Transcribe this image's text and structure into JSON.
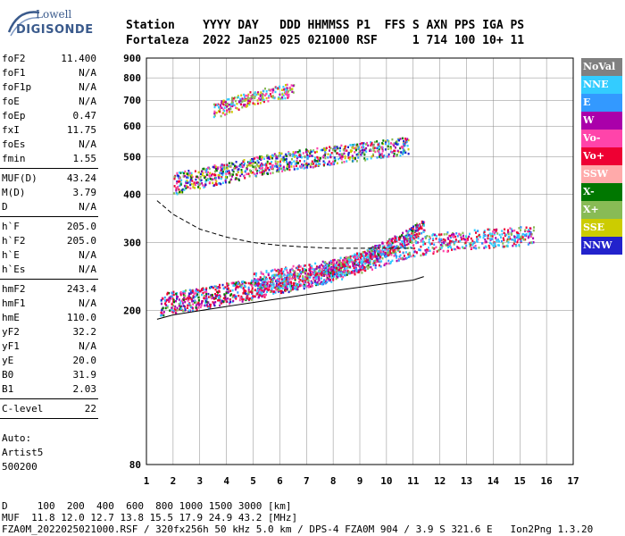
{
  "logo": {
    "line1": "Lowell",
    "line2": "DIGISONDE"
  },
  "header": {
    "line1": "Station    YYYY DAY   DDD HHMMSS P1  FFS S AXN PPS IGA PS",
    "line2": "Fortaleza  2022 Jan25 025 021000 RSF     1 714 100 10+ 11"
  },
  "params": [
    {
      "name": "foF2",
      "value": "11.400"
    },
    {
      "name": "foF1",
      "value": "N/A"
    },
    {
      "name": "foF1p",
      "value": "N/A"
    },
    {
      "name": "foE",
      "value": "N/A"
    },
    {
      "name": "foEp",
      "value": "0.47"
    },
    {
      "name": "fxI",
      "value": "11.75"
    },
    {
      "name": "foEs",
      "value": "N/A"
    },
    {
      "name": "fmin",
      "value": "1.55"
    },
    {
      "name": "MUF(D)",
      "value": "43.24"
    },
    {
      "name": "M(D)",
      "value": "3.79"
    },
    {
      "name": "D",
      "value": "N/A"
    },
    {
      "name": "h`F",
      "value": "205.0"
    },
    {
      "name": "h`F2",
      "value": "205.0"
    },
    {
      "name": "h`E",
      "value": "N/A"
    },
    {
      "name": "h`Es",
      "value": "N/A"
    },
    {
      "name": "hmF2",
      "value": "243.4"
    },
    {
      "name": "hmF1",
      "value": "N/A"
    },
    {
      "name": "hmE",
      "value": "110.0"
    },
    {
      "name": "yF2",
      "value": "32.2"
    },
    {
      "name": "yF1",
      "value": "N/A"
    },
    {
      "name": "yE",
      "value": "20.0"
    },
    {
      "name": "B0",
      "value": "31.9"
    },
    {
      "name": "B1",
      "value": "2.03"
    },
    {
      "name": "C-level",
      "value": "22"
    }
  ],
  "auto": {
    "line1": "Auto:",
    "line2": "Artist5",
    "line3": "500200"
  },
  "legend": [
    {
      "label": "NoVal",
      "color": "#808080"
    },
    {
      "label": "NNE",
      "color": "#33ccff"
    },
    {
      "label": "E",
      "color": "#3399ff"
    },
    {
      "label": "W",
      "color": "#aa00aa"
    },
    {
      "label": "Vo-",
      "color": "#ff44aa"
    },
    {
      "label": "Vo+",
      "color": "#ee0033"
    },
    {
      "label": "SSW",
      "color": "#ffaaaa"
    },
    {
      "label": "X-",
      "color": "#007700"
    },
    {
      "label": "X+",
      "color": "#88bb55"
    },
    {
      "label": "SSE",
      "color": "#cccc00"
    },
    {
      "label": "NNW",
      "color": "#2222cc"
    }
  ],
  "bottom": {
    "line1": "D     100  200  400  600  800 1000 1500 3000 [km]",
    "line2": "MUF  11.8 12.0 12.7 13.8 15.5 17.9 24.9 43.2 [MHz]",
    "line3": "FZA0M_2022025021000.RSF / 320fx256h 50 kHz 5.0 km / DPS-4 FZA0M 904 / 3.9 S 321.6 E   Ion2Png 1.3.20"
  },
  "chart_data": {
    "type": "scatter",
    "title": "",
    "xlabel": "",
    "ylabel": "",
    "xlim": [
      1,
      17
    ],
    "ylim": [
      80,
      900
    ],
    "y_scale": "log",
    "x_ticks": [
      "1",
      "2",
      "3",
      "4",
      "5",
      "6",
      "7",
      "8",
      "9",
      "10",
      "11",
      "12",
      "13",
      "14",
      "15",
      "16",
      "17"
    ],
    "y_ticks": [
      {
        "v": 80,
        "label": "80"
      },
      {
        "v": 200,
        "label": "200"
      },
      {
        "v": 300,
        "label": "300"
      },
      {
        "v": 400,
        "label": "400"
      },
      {
        "v": 500,
        "label": "500"
      },
      {
        "v": 600,
        "label": "600"
      },
      {
        "v": 700,
        "label": "700"
      },
      {
        "v": 800,
        "label": "800"
      },
      {
        "v": 900,
        "label": "900"
      }
    ],
    "grid": true,
    "legend_position": "right",
    "echo_regions": [
      {
        "name": "F-layer O trace",
        "x": [
          1.5,
          3,
          5,
          7,
          9,
          10.5,
          11.4
        ],
        "y": [
          205,
          212,
          225,
          240,
          265,
          300,
          330
        ]
      },
      {
        "name": "F-layer spread",
        "x": [
          5,
          8,
          11,
          12.5,
          14,
          15.5
        ],
        "y": [
          230,
          250,
          290,
          300,
          305,
          310
        ]
      },
      {
        "name": "second-hop",
        "x": [
          2,
          4,
          6,
          8,
          10,
          10.8
        ],
        "y": [
          420,
          450,
          480,
          500,
          520,
          530
        ]
      },
      {
        "name": "third-hop",
        "x": [
          3.5,
          4.5,
          5.5,
          6.5
        ],
        "y": [
          650,
          690,
          720,
          740
        ]
      }
    ],
    "profile_curves": [
      {
        "name": "profile-dashed",
        "style": "dashed",
        "x": [
          1.4,
          2,
          3,
          4,
          5,
          6,
          7,
          8,
          9,
          10,
          11
        ],
        "y": [
          385,
          355,
          325,
          310,
          300,
          295,
          292,
          290,
          290,
          290,
          290
        ]
      },
      {
        "name": "virtual-height-trace",
        "style": "solid",
        "x": [
          1.4,
          2,
          3,
          4,
          5,
          6,
          7,
          8,
          9,
          10,
          11,
          11.4
        ],
        "y": [
          190,
          195,
          200,
          205,
          210,
          215,
          220,
          225,
          230,
          235,
          240,
          245
        ]
      }
    ]
  }
}
